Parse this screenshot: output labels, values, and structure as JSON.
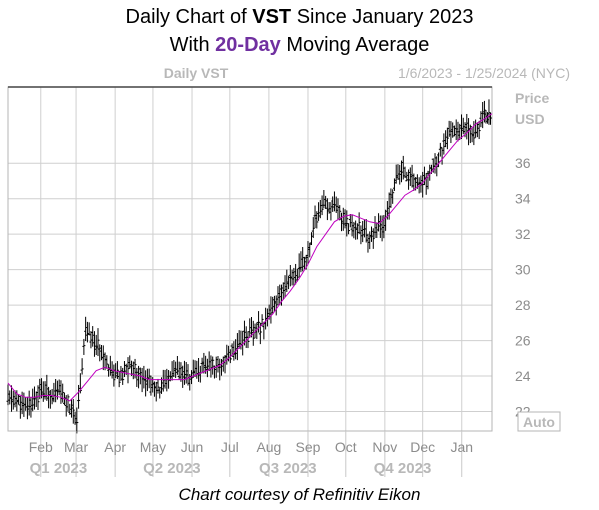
{
  "title": {
    "line1_prefix": "Daily Chart of ",
    "ticker": "VST",
    "line1_suffix": " Since January 2023",
    "line2_prefix": "With ",
    "line2_highlight": "20-Day",
    "line2_suffix": " Moving Average"
  },
  "header": {
    "left_label": "Daily VST",
    "date_range": "1/6/2023 - 1/25/2024 (NYC)",
    "price_label": "Price",
    "currency_label": "USD",
    "auto_button": "Auto"
  },
  "footer": {
    "credit": "Chart courtesy of Refinitiv Eikon"
  },
  "colors": {
    "accent": "#7030a0",
    "ma_line": "#c000c0",
    "bars": "#000000"
  },
  "chart_data": {
    "type": "line",
    "series": [
      {
        "name": "",
        "kind": "ohlc-bars",
        "x": [
          "2023-01-06",
          "2023-01-13",
          "2023-01-20",
          "2023-01-27",
          "2023-02-03",
          "2023-02-10",
          "2023-02-17",
          "2023-02-24",
          "2023-03-03",
          "2023-03-10",
          "2023-03-17",
          "2023-03-24",
          "2023-03-31",
          "2023-04-07",
          "2023-04-14",
          "2023-04-21",
          "2023-04-28",
          "2023-05-05",
          "2023-05-12",
          "2023-05-19",
          "2023-05-26",
          "2023-06-02",
          "2023-06-09",
          "2023-06-16",
          "2023-06-23",
          "2023-06-30",
          "2023-07-07",
          "2023-07-14",
          "2023-07-21",
          "2023-07-28",
          "2023-08-04",
          "2023-08-11",
          "2023-08-18",
          "2023-08-25",
          "2023-09-01",
          "2023-09-08",
          "2023-09-15",
          "2023-09-22",
          "2023-09-29",
          "2023-10-06",
          "2023-10-13",
          "2023-10-20",
          "2023-10-27",
          "2023-11-03",
          "2023-11-10",
          "2023-11-17",
          "2023-11-24",
          "2023-12-01",
          "2023-12-08",
          "2023-12-15",
          "2023-12-22",
          "2023-12-29",
          "2024-01-05",
          "2024-01-12",
          "2024-01-19",
          "2024-01-25"
        ],
        "close": [
          22.7,
          22.2,
          22.6,
          23.2,
          23.0,
          23.1,
          22.4,
          21.6,
          26.6,
          25.9,
          25.3,
          24.2,
          23.9,
          24.6,
          24.2,
          23.7,
          23.2,
          23.5,
          24.3,
          24.0,
          23.9,
          24.3,
          24.6,
          24.5,
          25.1,
          25.6,
          26.3,
          26.4,
          26.9,
          27.6,
          28.4,
          29.6,
          29.8,
          30.6,
          32.8,
          33.6,
          33.5,
          33.0,
          32.5,
          32.4,
          31.8,
          32.2,
          32.7,
          34.9,
          35.6,
          35.2,
          34.6,
          35.4,
          36.4,
          37.5,
          37.9,
          38.1,
          37.8,
          38.6,
          38.8,
          38.9
        ]
      },
      {
        "name": "",
        "kind": "line",
        "x": [
          "2023-01-06",
          "2023-01-13",
          "2023-01-20",
          "2023-01-27",
          "2023-02-03",
          "2023-02-10",
          "2023-02-17",
          "2023-02-24",
          "2023-03-03",
          "2023-03-10",
          "2023-03-17",
          "2023-03-24",
          "2023-03-31",
          "2023-04-07",
          "2023-04-14",
          "2023-04-21",
          "2023-04-28",
          "2023-05-05",
          "2023-05-12",
          "2023-05-19",
          "2023-05-26",
          "2023-06-02",
          "2023-06-09",
          "2023-06-16",
          "2023-06-23",
          "2023-06-30",
          "2023-07-07",
          "2023-07-14",
          "2023-07-21",
          "2023-07-28",
          "2023-08-04",
          "2023-08-11",
          "2023-08-18",
          "2023-08-25",
          "2023-09-01",
          "2023-09-08",
          "2023-09-15",
          "2023-09-22",
          "2023-09-29",
          "2023-10-06",
          "2023-10-13",
          "2023-10-20",
          "2023-10-27",
          "2023-11-03",
          "2023-11-10",
          "2023-11-17",
          "2023-11-24",
          "2023-12-01",
          "2023-12-08",
          "2023-12-15",
          "2023-12-22",
          "2023-12-29",
          "2024-01-05",
          "2024-01-12",
          "2024-01-19",
          "2024-01-25"
        ],
        "values": [
          23.6,
          23.0,
          22.8,
          22.8,
          22.9,
          22.9,
          22.8,
          22.6,
          23.1,
          23.7,
          24.3,
          24.5,
          24.3,
          24.2,
          24.1,
          24.0,
          23.8,
          23.8,
          23.8,
          23.8,
          23.8,
          24.0,
          24.2,
          24.4,
          24.6,
          25.0,
          25.5,
          26.0,
          26.5,
          27.0,
          27.5,
          28.2,
          28.8,
          29.5,
          30.3,
          31.3,
          32.0,
          32.7,
          33.0,
          33.1,
          32.9,
          32.7,
          32.6,
          33.0,
          33.6,
          34.2,
          34.5,
          34.9,
          35.5,
          36.1,
          36.7,
          37.3,
          37.7,
          38.2,
          38.5,
          38.8
        ]
      }
    ],
    "xlim": [
      "2023-01-06",
      "2024-01-25"
    ],
    "ylim": [
      20.9,
      40.3
    ],
    "y_ticks": [
      22,
      24,
      26,
      28,
      30,
      32,
      34,
      36
    ],
    "x_month_ticks": [
      {
        "label": "Feb",
        "date": "2023-02-01"
      },
      {
        "label": "Mar",
        "date": "2023-03-01"
      },
      {
        "label": "Apr",
        "date": "2023-04-01"
      },
      {
        "label": "May",
        "date": "2023-05-01"
      },
      {
        "label": "Jun",
        "date": "2023-06-01"
      },
      {
        "label": "Jul",
        "date": "2023-07-01"
      },
      {
        "label": "Aug",
        "date": "2023-08-01"
      },
      {
        "label": "Sep",
        "date": "2023-09-01"
      },
      {
        "label": "Oct",
        "date": "2023-10-01"
      },
      {
        "label": "Nov",
        "date": "2023-11-01"
      },
      {
        "label": "Dec",
        "date": "2023-12-01"
      },
      {
        "label": "Jan",
        "date": "2024-01-01"
      }
    ],
    "x_quarter_ticks": [
      {
        "label": "Q1 2023",
        "date": "2023-02-15"
      },
      {
        "label": "Q2 2023",
        "date": "2023-05-16"
      },
      {
        "label": "Q3 2023",
        "date": "2023-08-16"
      },
      {
        "label": "Q4 2023",
        "date": "2023-11-15"
      }
    ],
    "grid": true
  }
}
